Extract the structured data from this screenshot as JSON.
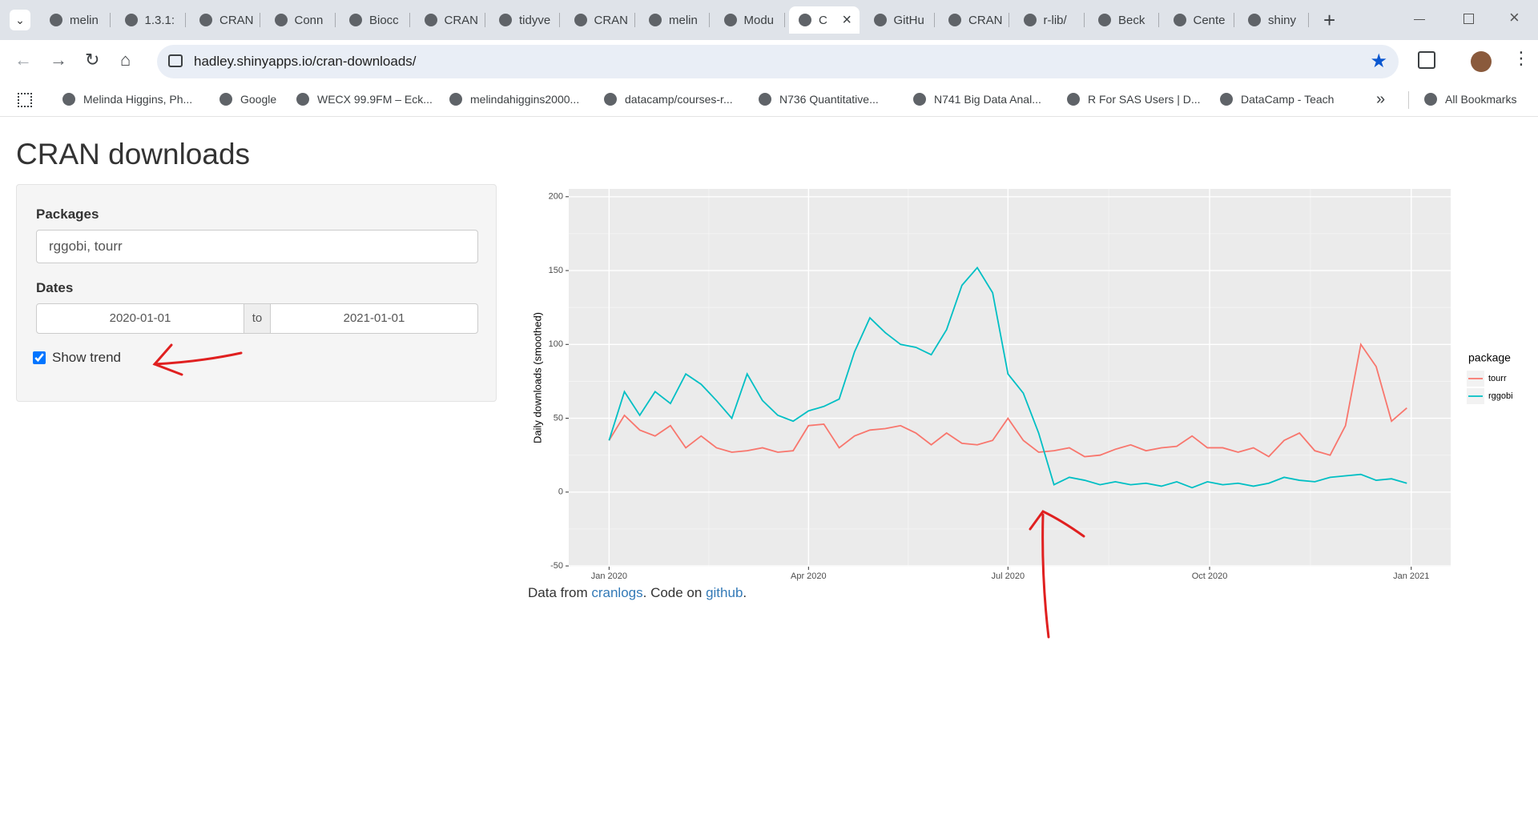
{
  "browser": {
    "tabs": [
      "melin",
      "1.3.1:",
      "CRAN",
      "Conn",
      "Biocc",
      "CRAN",
      "tidyve",
      "CRAN",
      "melin",
      "Modu",
      "C",
      "GitHu",
      "CRAN",
      "r-lib/",
      "Beck",
      "Cente",
      "shiny"
    ],
    "active_tab": 10,
    "url": "hadley.shinyapps.io/cran-downloads/",
    "bookmarks": [
      "Melinda Higgins, Ph...",
      "Google",
      "WECX 99.9FM – Eck...",
      "melindahiggins2000...",
      "datacamp/courses-r...",
      "N736 Quantitative...",
      "N741 Big Data Anal...",
      "R For SAS Users | D...",
      "DataCamp - Teach"
    ],
    "all_bookmarks": "All Bookmarks"
  },
  "page": {
    "title": "CRAN downloads",
    "packages_label": "Packages",
    "packages_value": "rggobi, tourr",
    "dates_label": "Dates",
    "date_start": "2020-01-01",
    "date_sep": "to",
    "date_end": "2021-01-01",
    "show_trend_label": "Show trend",
    "show_trend": true,
    "footer": [
      "Data from ",
      "cranlogs",
      ". Code on ",
      "github",
      "."
    ]
  },
  "chart_data": {
    "type": "line",
    "y_label": "Daily downloads (smoothed)",
    "legend_title": "package",
    "grid": true,
    "x": [
      0,
      7,
      14,
      21,
      28,
      35,
      42,
      49,
      56,
      63,
      70,
      77,
      84,
      91,
      98,
      105,
      112,
      119,
      126,
      133,
      140,
      147,
      154,
      161,
      168,
      175,
      182,
      189,
      196,
      203,
      210,
      217,
      224,
      231,
      238,
      245,
      252,
      259,
      266,
      273,
      280,
      287,
      294,
      301,
      308,
      315,
      322,
      329,
      336,
      343,
      350,
      357,
      364
    ],
    "xlim": [
      -18.4,
      384
    ],
    "xticks": [
      {
        "value": 0,
        "label": "Jan 2020"
      },
      {
        "value": 91,
        "label": "Apr 2020"
      },
      {
        "value": 182,
        "label": "Jul 2020"
      },
      {
        "value": 274,
        "label": "Oct 2020"
      },
      {
        "value": 366,
        "label": "Jan 2021"
      }
    ],
    "ylim": [
      -50.5,
      205.3
    ],
    "yticks": [
      -50,
      0,
      50,
      100,
      150,
      200
    ],
    "series": [
      {
        "name": "tourr",
        "color": "#f8766d",
        "values": [
          35,
          52,
          42,
          38,
          45,
          30,
          38,
          30,
          27,
          28,
          30,
          27,
          28,
          45,
          46,
          30,
          38,
          42,
          43,
          45,
          40,
          32,
          40,
          33,
          32,
          35,
          50,
          35,
          27,
          28,
          30,
          24,
          25,
          29,
          32,
          28,
          30,
          31,
          38,
          30,
          30,
          27,
          30,
          24,
          35,
          40,
          28,
          25,
          45,
          100,
          85,
          48,
          57
        ]
      },
      {
        "name": "rggobi",
        "color": "#00bfc4",
        "values": [
          35,
          68,
          52,
          68,
          60,
          80,
          73,
          62,
          50,
          80,
          62,
          52,
          48,
          55,
          58,
          63,
          95,
          118,
          108,
          100,
          98,
          93,
          110,
          140,
          152,
          135,
          80,
          67,
          40,
          5,
          10,
          8,
          5,
          7,
          5,
          6,
          4,
          7,
          3,
          7,
          5,
          6,
          4,
          6,
          10,
          8,
          7,
          10,
          11,
          12,
          8,
          9,
          6
        ]
      }
    ]
  }
}
